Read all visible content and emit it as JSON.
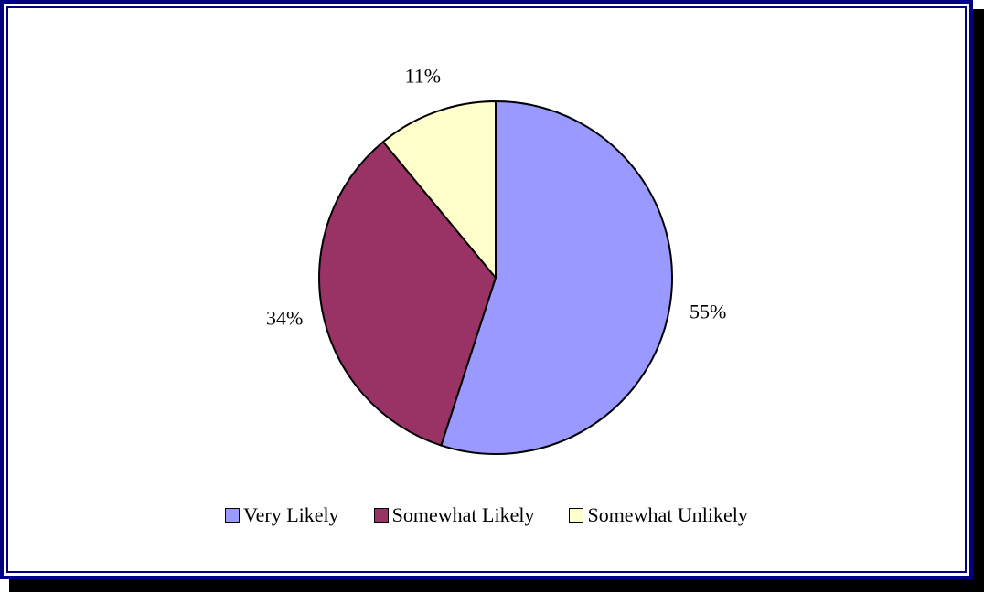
{
  "chart_data": {
    "type": "pie",
    "title": "",
    "slices": [
      {
        "label": "Very Likely",
        "value": 55,
        "display": "55%",
        "color": "#9999FF"
      },
      {
        "label": "Somewhat Likely",
        "value": 34,
        "display": "34%",
        "color": "#993366"
      },
      {
        "label": "Somewhat Unlikely",
        "value": 11,
        "display": "11%",
        "color": "#FFFFCC"
      }
    ],
    "start_angle": "12 o'clock",
    "direction": "clockwise",
    "legend_position": "bottom"
  }
}
